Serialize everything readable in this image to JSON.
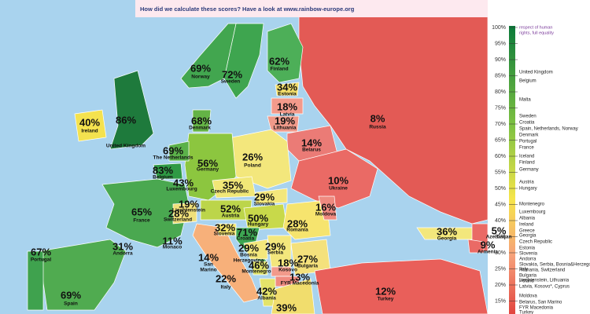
{
  "header": {
    "note": "How did we calculate these scores? Have a look at www.rainbow-europe.org"
  },
  "countries": [
    {
      "name": "Norway",
      "score": "69%"
    },
    {
      "name": "Sweden",
      "score": "72%"
    },
    {
      "name": "Finland",
      "score": "62%"
    },
    {
      "name": "Estonia",
      "score": "34%"
    },
    {
      "name": "Latvia",
      "score": "18%"
    },
    {
      "name": "Lithuania",
      "score": "19%"
    },
    {
      "name": "Russia",
      "score": "8%"
    },
    {
      "name": "Belarus",
      "score": "14%"
    },
    {
      "name": "Ireland",
      "score": "40%"
    },
    {
      "name": "United Kingdom",
      "score": "86%"
    },
    {
      "name": "Denmark",
      "score": "68%"
    },
    {
      "name": "The Netherlands",
      "score": "69%"
    },
    {
      "name": "Germany",
      "score": "56%"
    },
    {
      "name": "Poland",
      "score": "26%"
    },
    {
      "name": "Belgium",
      "score": "83%"
    },
    {
      "name": "Luxembourg",
      "score": "43%"
    },
    {
      "name": "Czech Republic",
      "score": "35%"
    },
    {
      "name": "Slovakia",
      "score": "29%"
    },
    {
      "name": "Ukraine",
      "score": "10%"
    },
    {
      "name": "Liechtenstein",
      "score": "19%"
    },
    {
      "name": "Switzerland",
      "score": "28%"
    },
    {
      "name": "Austria",
      "score": "52%"
    },
    {
      "name": "Hungary",
      "score": "50%"
    },
    {
      "name": "Romania",
      "score": "28%"
    },
    {
      "name": "Moldova",
      "score": "16%"
    },
    {
      "name": "France",
      "score": "65%"
    },
    {
      "name": "Monaco",
      "score": "11%"
    },
    {
      "name": "Slovenia",
      "score": "32%"
    },
    {
      "name": "Croatia",
      "score": "71%"
    },
    {
      "name": [
        "Bosnia",
        "Herzegovina"
      ],
      "score": "29%"
    },
    {
      "name": "Serbia",
      "score": "29%"
    },
    {
      "name": "Montenegro",
      "score": "46%"
    },
    {
      "name": "Kosovo",
      "score": "18%"
    },
    {
      "name": "Bulgaria",
      "score": "27%"
    },
    {
      "name": "FYR Macedonia",
      "score": "13%"
    },
    {
      "name": "Albania",
      "score": "42%"
    },
    {
      "name": [
        "San",
        "Marino"
      ],
      "score": "14%"
    },
    {
      "name": "Italy",
      "score": "22%"
    },
    {
      "name": "Portugal",
      "score": "67%"
    },
    {
      "name": "Spain",
      "score": "69%"
    },
    {
      "name": "Andorra",
      "score": "31%"
    },
    {
      "name": "Georgia",
      "score": "36%"
    },
    {
      "name": "Azerbaijan",
      "score": "5%"
    },
    {
      "name": "Armenia",
      "score": "9%"
    },
    {
      "name": "Turkey",
      "score": "12%"
    },
    {
      "score": "39%"
    }
  ],
  "legend": {
    "caption": [
      "respect of human",
      "rights, full equality"
    ],
    "ticks": [
      "100%",
      "95%",
      "90%",
      "85%",
      "80%",
      "75%",
      "70%",
      "65%",
      "60%",
      "55%",
      "50%",
      "45%",
      "40%",
      "35%",
      "30%",
      "25%",
      "20%",
      "15%"
    ],
    "entries": [
      "United Kingdom",
      "Belgium",
      "Malta",
      "Sweden",
      "Croatia",
      "Spain, Netherlands, Norway",
      "Denmark",
      "Portugal",
      "France",
      "Iceland",
      "Finland",
      "Germany",
      "Austria",
      "Hungary",
      "Montenegro",
      "Luxembourg",
      "Albania",
      "Ireland",
      "Greece",
      "Georgia",
      "Czech Republic",
      "Estonia",
      "Slovenia",
      "Andorra",
      "Slovakia, Serbia, Bosnia&Herzegovina",
      "Romania, Switzerland",
      "Bulgaria",
      "Poland",
      "Italy",
      "Liechtenstein, Lithuania",
      "Latvia, Kosovo*, Cyprus",
      "Moldova",
      "Belarus, San Marino",
      "FYR Macedonia",
      "Turkey"
    ]
  }
}
